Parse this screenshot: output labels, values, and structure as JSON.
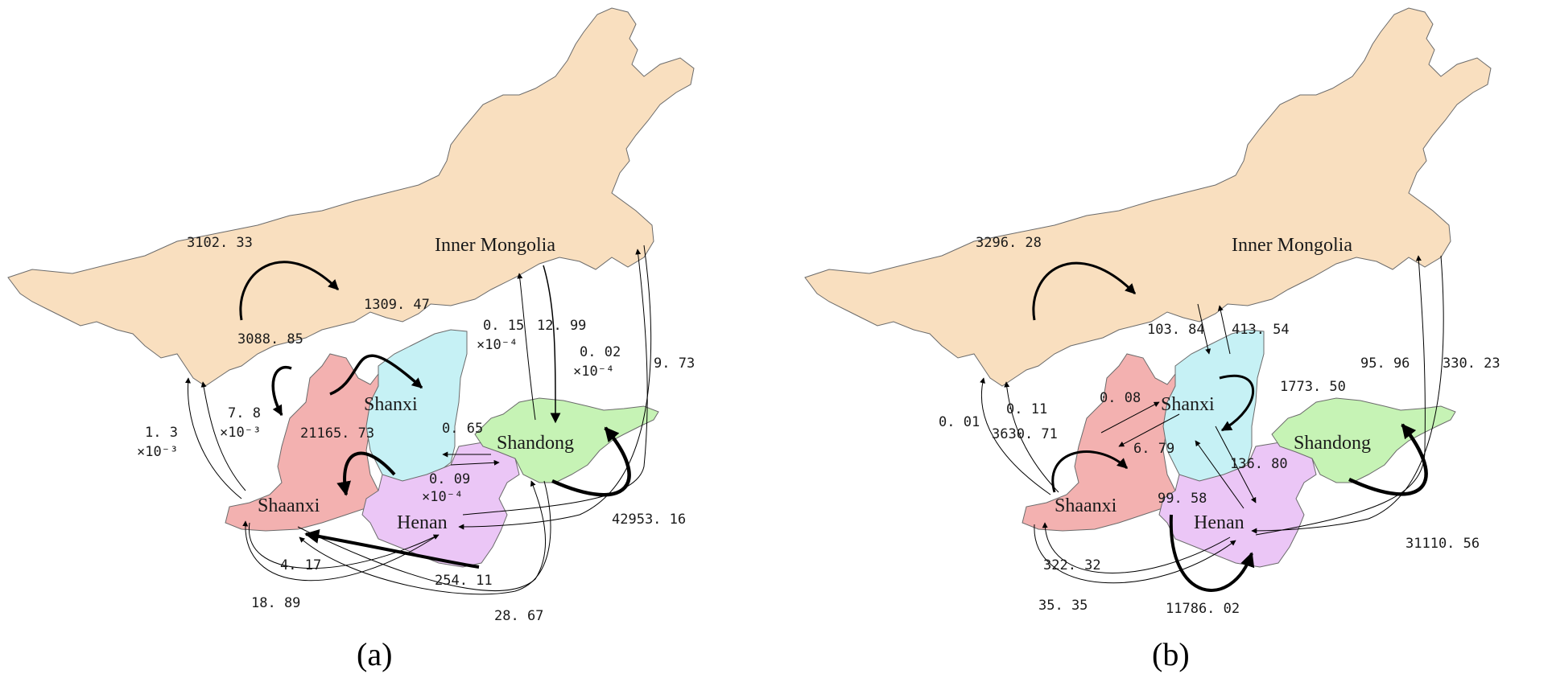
{
  "colors": {
    "inner_mongolia": "#f9dfbf",
    "shanxi": "#c6f1f5",
    "shaanxi": "#f3b1b0",
    "henan": "#ebc6f6",
    "shandong": "#c6f3b5",
    "arrow": "#000000"
  },
  "panel_a": {
    "caption": "(a)",
    "regions": {
      "inner_mongolia": "Inner Mongolia",
      "shanxi": "Shanxi",
      "shaanxi": "Shaanxi",
      "henan": "Henan",
      "shandong": "Shandong"
    },
    "flows": {
      "im_self": "3102. 33",
      "im_shaanxi": "3088. 85",
      "im_shanxi": "1309. 47",
      "shaanxi_im_a": "1. 3",
      "shaanxi_im_a_unit": "×10⁻³",
      "shaanxi_im_b": "7. 8",
      "shaanxi_im_b_unit": "×10⁻³",
      "shanxi_henan": "21165. 73",
      "shandong_im_a": "0. 15",
      "shandong_im_a_unit": "×10⁻⁴",
      "im_shandong": "12. 99",
      "shandong_im_b": "0. 02",
      "shandong_im_b_unit": "×10⁻⁴",
      "henan_im": "9. 73",
      "henan_shandong": "0. 65",
      "henan_shandong_b": "0. 09",
      "henan_shandong_b_unit": "×10⁻⁴",
      "shandong_self": "42953. 16",
      "henan_shaanxi": "4. 17",
      "shaanxi_loop": "18. 89",
      "shandong_shaanxi": "254. 11",
      "shaanxi_shandong": "28. 67"
    }
  },
  "panel_b": {
    "caption": "(b)",
    "regions": {
      "inner_mongolia": "Inner Mongolia",
      "shanxi": "Shanxi",
      "shaanxi": "Shaanxi",
      "henan": "Henan",
      "shandong": "Shandong"
    },
    "flows": {
      "im_self": "3296. 28",
      "im_shanxi": "103. 84",
      "shanxi_im": "413. 54",
      "shanxi_self": "1773. 50",
      "shandong_im": "95. 96",
      "henan_im": "330. 23",
      "shaanxi_im_a": "0. 01",
      "shaanxi_im_b": "0. 11",
      "shaanxi_shanxi": "0. 08",
      "shaanxi_self": "3630. 71",
      "shanxi_shaanxi": "6. 79",
      "shanxi_henan": "136. 80",
      "henan_shanxi": "99. 58",
      "shandong_self": "31110. 56",
      "henan_shaanxi": "322. 32",
      "shaanxi_henan": "35. 35",
      "henan_self": "11786. 02"
    }
  }
}
